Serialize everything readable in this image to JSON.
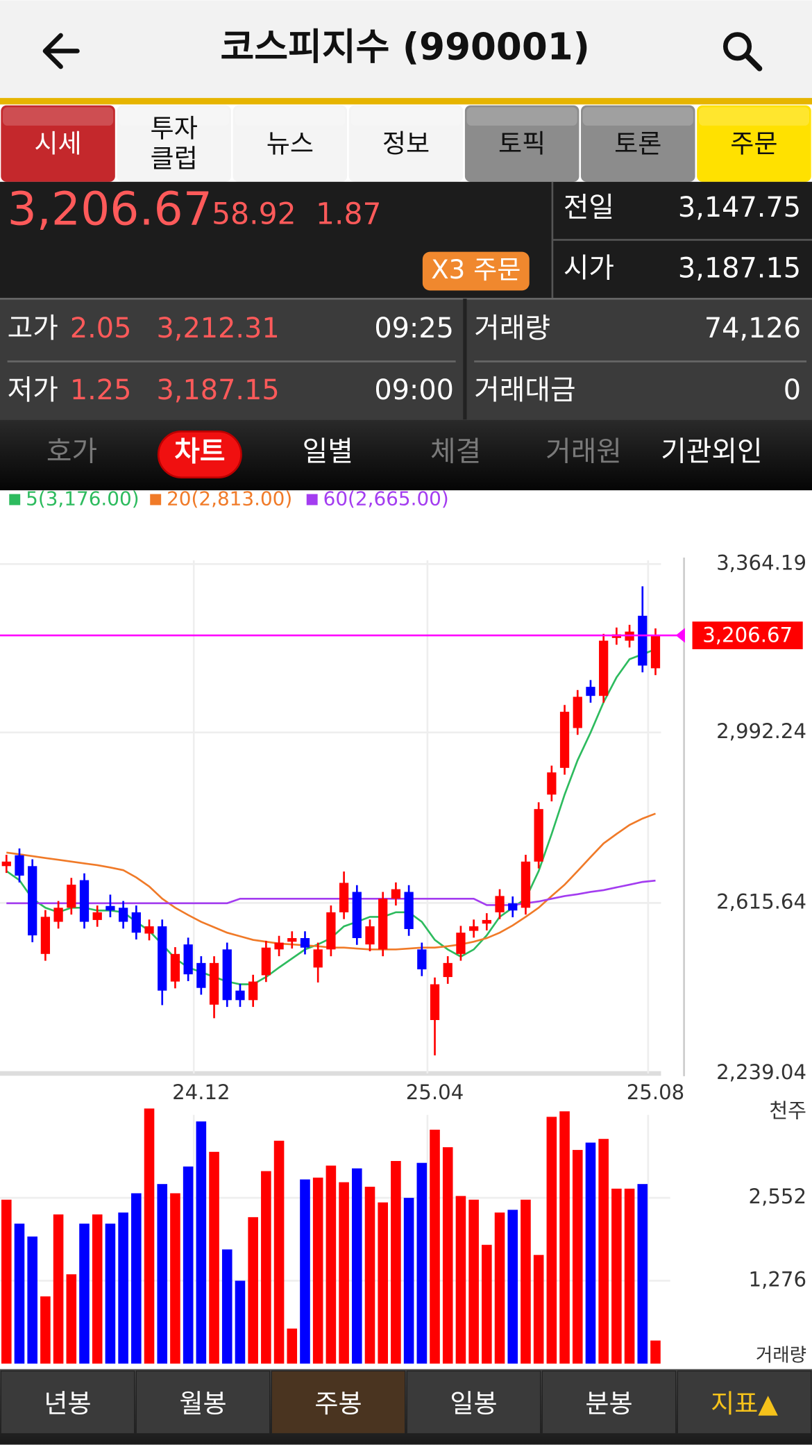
{
  "header": {
    "title": "코스피지수 (990001)"
  },
  "tabs": [
    {
      "lines": [
        "시세"
      ],
      "color": "#c4282c",
      "text_color": "#ffffff"
    },
    {
      "lines": [
        "투자",
        "클럽"
      ],
      "color": "#f4f4f4",
      "text_color": "#111111"
    },
    {
      "lines": [
        "뉴스"
      ],
      "color": "#f4f4f4",
      "text_color": "#111111"
    },
    {
      "lines": [
        "정보"
      ],
      "color": "#f4f4f4",
      "text_color": "#111111"
    },
    {
      "lines": [
        "토픽"
      ],
      "color": "#8c8c8c",
      "text_color": "#111111"
    },
    {
      "lines": [
        "토론"
      ],
      "color": "#8c8c8c",
      "text_color": "#111111"
    },
    {
      "lines": [
        "주문"
      ],
      "color": "#ffe100",
      "text_color": "#111111"
    }
  ],
  "quote": {
    "price": "3,206.67",
    "change": "58.92",
    "change_pct": "1.87",
    "order_button": "X3 주문",
    "prev_close": {
      "label": "전일",
      "value": "3,147.75"
    },
    "open": {
      "label": "시가",
      "value": "3,187.15"
    }
  },
  "stats": {
    "high": {
      "label": "고가",
      "pct": "2.05",
      "price": "3,212.31",
      "time": "09:25"
    },
    "low": {
      "label": "저가",
      "pct": "1.25",
      "price": "3,187.15",
      "time": "09:00"
    },
    "volume": {
      "label": "거래량",
      "value": "74,126"
    },
    "turnover": {
      "label": "거래대금",
      "value": "0"
    }
  },
  "subtabs": [
    {
      "label": "호가",
      "state": "disabled"
    },
    {
      "label": "차트",
      "state": "selected"
    },
    {
      "label": "일별",
      "state": "normal"
    },
    {
      "label": "체결",
      "state": "disabled"
    },
    {
      "label": "거래원",
      "state": "disabled"
    },
    {
      "label": "기관외인",
      "state": "normal"
    }
  ],
  "chart_data": {
    "type": "candlestick",
    "up_color": "#ff0000",
    "down_color": "#0000ff",
    "categories": [
      null,
      null,
      null,
      null,
      null,
      null,
      null,
      null,
      null,
      null,
      null,
      null,
      null,
      null,
      null,
      "24.12",
      null,
      null,
      null,
      null,
      null,
      null,
      null,
      null,
      null,
      null,
      null,
      null,
      null,
      null,
      null,
      null,
      null,
      "25.04",
      null,
      null,
      null,
      null,
      null,
      null,
      null,
      null,
      null,
      null,
      null,
      null,
      null,
      null,
      null,
      null,
      "25.08"
    ],
    "open": [
      2697,
      2721,
      2697,
      2503,
      2574,
      2605,
      2666,
      2578,
      2609,
      2605,
      2595,
      2548,
      2564,
      2442,
      2524,
      2483,
      2391,
      2513,
      2422,
      2401,
      2456,
      2513,
      2530,
      2538,
      2473,
      2513,
      2595,
      2640,
      2524,
      2513,
      2625,
      2640,
      2513,
      2357,
      2452,
      2503,
      2554,
      2570,
      2595,
      2615,
      2605,
      2707,
      2855,
      2914,
      3002,
      3093,
      3073,
      3201,
      3195,
      3250,
      3134
    ],
    "high": [
      2722,
      2736,
      2712,
      2600,
      2620,
      2671,
      2681,
      2610,
      2634,
      2620,
      2610,
      2579,
      2579,
      2518,
      2539,
      2498,
      2498,
      2528,
      2437,
      2457,
      2532,
      2543,
      2553,
      2553,
      2528,
      2610,
      2685,
      2655,
      2579,
      2640,
      2661,
      2655,
      2528,
      2451,
      2498,
      2565,
      2579,
      2593,
      2646,
      2630,
      2722,
      2838,
      2919,
      3053,
      3086,
      3108,
      3210,
      3224,
      3230,
      3315,
      3222
    ],
    "low": [
      2682,
      2661,
      2529,
      2488,
      2559,
      2590,
      2559,
      2563,
      2584,
      2559,
      2535,
      2533,
      2390,
      2427,
      2443,
      2413,
      2361,
      2386,
      2386,
      2386,
      2441,
      2498,
      2515,
      2502,
      2440,
      2498,
      2580,
      2523,
      2509,
      2498,
      2610,
      2543,
      2454,
      2279,
      2437,
      2488,
      2539,
      2555,
      2580,
      2584,
      2590,
      2692,
      2840,
      2899,
      2987,
      3058,
      3058,
      3186,
      3180,
      3125,
      3119
    ],
    "close": [
      2707,
      2676,
      2544,
      2585,
      2605,
      2656,
      2574,
      2595,
      2599,
      2574,
      2550,
      2564,
      2422,
      2503,
      2458,
      2428,
      2483,
      2401,
      2401,
      2442,
      2517,
      2528,
      2538,
      2517,
      2513,
      2595,
      2660,
      2538,
      2564,
      2625,
      2646,
      2558,
      2469,
      2436,
      2483,
      2550,
      2564,
      2578,
      2631,
      2599,
      2707,
      2823,
      2904,
      3038,
      3071,
      3073,
      3195,
      3209,
      3215,
      3140,
      3207
    ],
    "ma_lines": [
      {
        "name": "5(3,176.00)",
        "color": "#2dbb5e",
        "values": [
          2686,
          2666,
          2625,
          2605,
          2595,
          2605,
          2605,
          2599,
          2599,
          2595,
          2574,
          2554,
          2524,
          2493,
          2473,
          2463,
          2452,
          2442,
          2436,
          2436,
          2452,
          2473,
          2493,
          2513,
          2524,
          2538,
          2564,
          2574,
          2585,
          2585,
          2595,
          2595,
          2574,
          2534,
          2513,
          2497,
          2513,
          2544,
          2585,
          2605,
          2625,
          2686,
          2768,
          2855,
          2931,
          2992,
          3059,
          3114,
          3154,
          3165,
          3176
        ]
      },
      {
        "name": "20(2,813.00)",
        "color": "#f07a28",
        "values": [
          2727,
          2723,
          2719,
          2715,
          2711,
          2707,
          2703,
          2699,
          2694,
          2688,
          2672,
          2652,
          2625,
          2605,
          2589,
          2574,
          2562,
          2550,
          2542,
          2534,
          2530,
          2526,
          2524,
          2522,
          2520,
          2517,
          2517,
          2515,
          2513,
          2513,
          2513,
          2515,
          2517,
          2517,
          2520,
          2524,
          2530,
          2538,
          2550,
          2566,
          2585,
          2605,
          2631,
          2656,
          2686,
          2717,
          2747,
          2768,
          2788,
          2802,
          2813
        ]
      },
      {
        "name": "60(2,665.00)",
        "color": "#a33cf0",
        "values": [
          2615,
          2615,
          2615,
          2615,
          2615,
          2615,
          2615,
          2615,
          2615,
          2615,
          2615,
          2615,
          2615,
          2615,
          2615,
          2615,
          2615,
          2615,
          2625,
          2625,
          2625,
          2625,
          2625,
          2625,
          2625,
          2625,
          2625,
          2625,
          2625,
          2625,
          2625,
          2625,
          2625,
          2625,
          2625,
          2625,
          2625,
          2611,
          2611,
          2611,
          2615,
          2619,
          2625,
          2631,
          2635,
          2640,
          2644,
          2650,
          2656,
          2662,
          2665
        ]
      }
    ],
    "ylim": [
      2239.04,
      3364.19
    ],
    "yticks": [
      {
        "value": 3364.19,
        "label": "3,364.19"
      },
      {
        "value": 2992.24,
        "label": "2,992.24"
      },
      {
        "value": 2615.64,
        "label": "2,615.64"
      },
      {
        "value": 2239.04,
        "label": "2,239.04"
      }
    ],
    "grid": true,
    "current_price": {
      "value": 3206.67,
      "label": "3,206.67",
      "color": "#ff00ff"
    },
    "volume": {
      "label": "거래량",
      "unit": "천주",
      "ylim": [
        0,
        4000
      ],
      "yticks": [
        {
          "value": 2552,
          "label": "2,552"
        },
        {
          "value": 1276,
          "label": "1,276"
        }
      ],
      "values": [
        2524,
        2155,
        1957,
        1035,
        2297,
        1375,
        2155,
        2297,
        2155,
        2326,
        2623,
        3928,
        2765,
        2623,
        3035,
        3729,
        3261,
        1758,
        1276,
        2255,
        2964,
        3432,
        539,
        2836,
        2864,
        3049,
        2793,
        3006,
        2723,
        2482,
        3120,
        2552,
        3091,
        3602,
        3332,
        2581,
        2524,
        1829,
        2326,
        2368,
        2524,
        1673,
        3800,
        3885,
        3290,
        3403,
        3460,
        2694,
        2694,
        2765,
        355
      ]
    }
  },
  "bottom_tabs": [
    {
      "label": "년봉",
      "state": "normal"
    },
    {
      "label": "월봉",
      "state": "normal"
    },
    {
      "label": "주봉",
      "state": "selected"
    },
    {
      "label": "일봉",
      "state": "normal"
    },
    {
      "label": "분봉",
      "state": "normal"
    },
    {
      "label": "지표▲",
      "state": "accent"
    }
  ]
}
